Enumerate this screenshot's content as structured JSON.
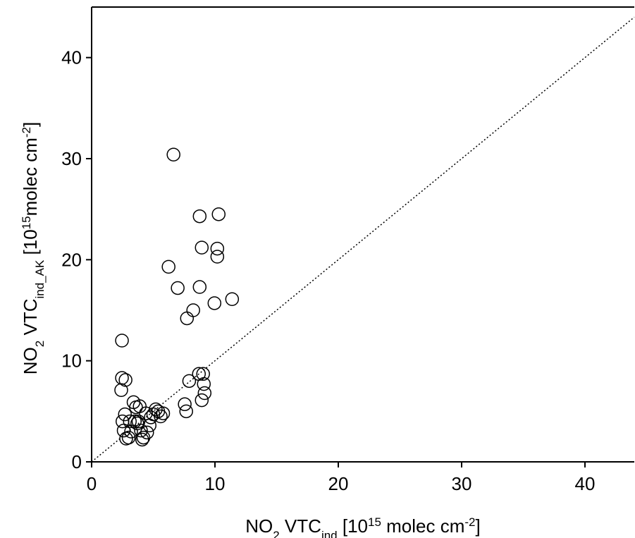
{
  "chart_data": {
    "type": "scatter",
    "xlabel": [
      "NO",
      "2",
      " VTC",
      "ind",
      " [10",
      "15",
      " molec cm",
      "-2",
      "]"
    ],
    "ylabel": [
      "NO",
      "2",
      " VTC",
      "ind_AK",
      " [10",
      "15",
      "molec cm",
      "-2",
      "]"
    ],
    "x": [
      6.64,
      8.76,
      10.3,
      8.93,
      10.19,
      10.19,
      6.24,
      6.98,
      8.76,
      11.39,
      9.96,
      8.24,
      7.73,
      2.46,
      2.46,
      2.75,
      2.4,
      8.7,
      9.04,
      7.91,
      9.1,
      9.16,
      8.93,
      7.55,
      7.67,
      2.5,
      2.7,
      2.6,
      2.8,
      3.0,
      3.2,
      3.1,
      3.4,
      3.6,
      3.9,
      3.5,
      3.7,
      4.0,
      4.2,
      4.1,
      4.5,
      4.7,
      4.8,
      5.0,
      5.2,
      5.4,
      5.6,
      5.8,
      4.4,
      3.8
    ],
    "values": [
      30.4,
      24.3,
      24.5,
      21.2,
      21.1,
      20.3,
      19.3,
      17.2,
      17.3,
      16.1,
      15.7,
      15.0,
      14.2,
      12.0,
      8.3,
      8.1,
      7.1,
      8.7,
      8.7,
      8.0,
      7.7,
      6.8,
      6.1,
      5.7,
      5.0,
      4.0,
      4.7,
      3.1,
      2.3,
      2.4,
      3.0,
      4.0,
      5.9,
      5.4,
      5.5,
      4.0,
      3.8,
      3.1,
      2.4,
      2.2,
      2.9,
      3.6,
      4.4,
      4.7,
      5.2,
      5.0,
      4.5,
      4.8,
      4.8,
      4.0
    ],
    "color": "#000000",
    "xlim": [
      0,
      44
    ],
    "ylim": [
      0,
      45
    ],
    "xticks": [
      0,
      10,
      20,
      30,
      40
    ],
    "yticks": [
      0,
      10,
      20,
      30,
      40
    ],
    "one_to_one_line": true
  }
}
